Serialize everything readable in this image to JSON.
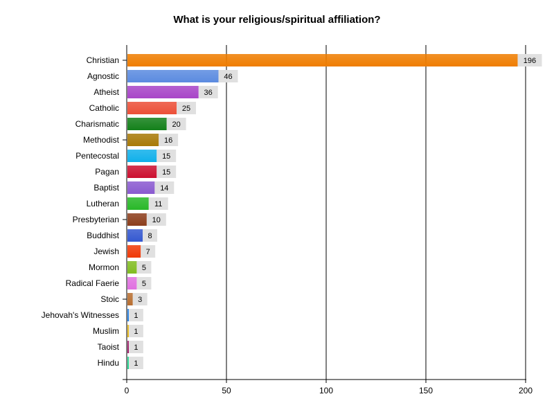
{
  "chart_data": {
    "type": "bar",
    "orientation": "horizontal",
    "title": "What is your religious/spiritual affiliation?",
    "xlabel": "",
    "ylabel": "",
    "xlim": [
      0,
      200
    ],
    "xticks": [
      0,
      50,
      100,
      150,
      200
    ],
    "grid": true,
    "legend": "none",
    "categories": [
      "Christian",
      "Agnostic",
      "Atheist",
      "Catholic",
      "Charismatic",
      "Methodist",
      "Pentecostal",
      "Pagan",
      "Baptist",
      "Lutheran",
      "Presbyterian",
      "Buddhist",
      "Jewish",
      "Mormon",
      "Radical Faerie",
      "Stoic",
      "Jehovah's Witnesses",
      "Muslim",
      "Taoist",
      "Hindu"
    ],
    "values": [
      196,
      46,
      36,
      25,
      20,
      16,
      15,
      15,
      14,
      11,
      10,
      8,
      7,
      5,
      5,
      3,
      1,
      1,
      1,
      1
    ],
    "colors": [
      "#ef7d00",
      "#5b8be0",
      "#a845c8",
      "#ec5038",
      "#13801a",
      "#a87a08",
      "#10b0ea",
      "#cc1030",
      "#8a5ad0",
      "#28b828",
      "#8c3e1c",
      "#3458d0",
      "#f03a08",
      "#80bc20",
      "#e070e0",
      "#b86e30",
      "#2080e8",
      "#e8b818",
      "#a01868",
      "#20d890"
    ]
  }
}
